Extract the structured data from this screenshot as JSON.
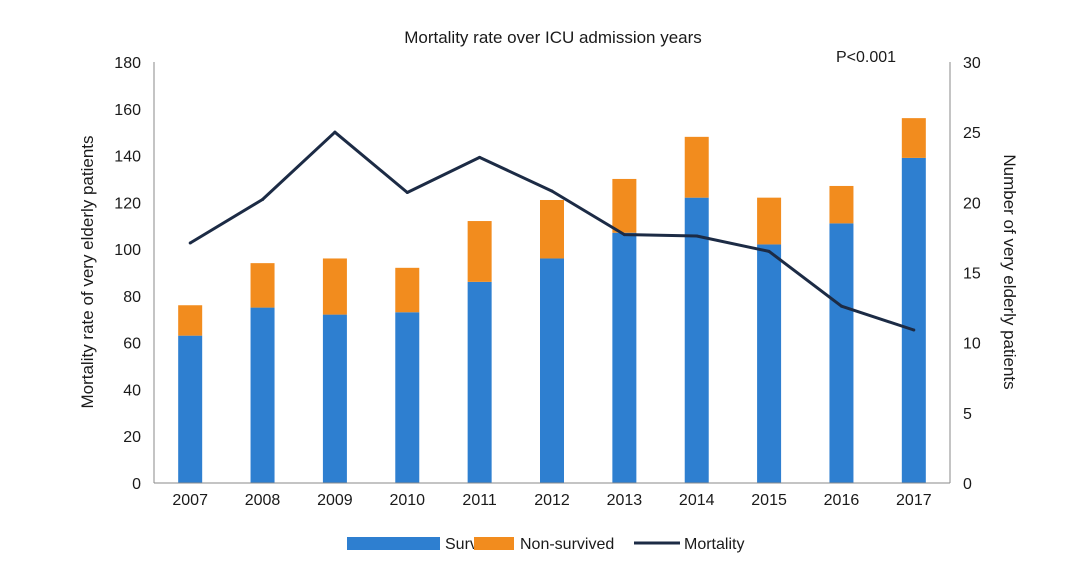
{
  "chart_data": {
    "type": "bar",
    "title": "Mortality rate over ICU admission years",
    "annotation": "P<0.001",
    "categories": [
      "2007",
      "2008",
      "2009",
      "2010",
      "2011",
      "2012",
      "2013",
      "2014",
      "2015",
      "2016",
      "2017"
    ],
    "series": [
      {
        "name": "Survived",
        "type": "bar",
        "stack": "patients",
        "color": "#2e7fd0",
        "values": [
          63,
          75,
          72,
          73,
          86,
          96,
          107,
          122,
          102,
          111,
          139
        ]
      },
      {
        "name": "Non-survived",
        "type": "bar",
        "stack": "patients",
        "color": "#f28c1e",
        "values": [
          13,
          19,
          24,
          19,
          26,
          25,
          23,
          26,
          20,
          16,
          17
        ]
      },
      {
        "name": "Mortality",
        "type": "line",
        "color": "#1c2b45",
        "values": [
          17.1,
          20.2,
          25.0,
          20.7,
          23.2,
          20.8,
          17.7,
          17.6,
          16.5,
          12.6,
          10.9
        ]
      }
    ],
    "y_left": {
      "label": "Mortality rate of very elderly patients",
      "lim": [
        0,
        180
      ],
      "ticks": [
        "0",
        "20",
        "40",
        "60",
        "80",
        "100",
        "120",
        "140",
        "160",
        "180"
      ]
    },
    "y_right": {
      "label": "Number of very elderly patients",
      "lim": [
        0,
        30
      ],
      "ticks": [
        "0",
        "5",
        "10",
        "15",
        "20",
        "25",
        "30"
      ]
    },
    "grid": false,
    "legend_position": "bottom"
  }
}
